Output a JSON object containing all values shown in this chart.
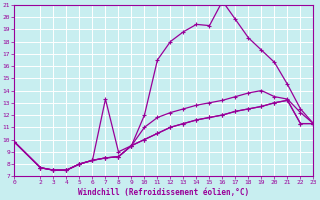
{
  "xlabel": "Windchill (Refroidissement éolien,°C)",
  "bg_color": "#c8eef0",
  "grid_color": "#ffffff",
  "line_color": "#990099",
  "xlim": [
    0,
    23
  ],
  "ylim": [
    7,
    21
  ],
  "xticks": [
    0,
    2,
    3,
    4,
    5,
    6,
    7,
    8,
    9,
    10,
    11,
    12,
    13,
    14,
    15,
    16,
    17,
    18,
    19,
    20,
    21,
    22,
    23
  ],
  "yticks": [
    7,
    8,
    9,
    10,
    11,
    12,
    13,
    14,
    15,
    16,
    17,
    18,
    19,
    20,
    21
  ],
  "lines": [
    {
      "x": [
        0,
        2,
        3,
        4,
        5,
        6,
        7,
        8,
        9,
        10,
        11,
        12,
        13,
        14,
        15,
        16,
        17,
        18,
        19,
        20,
        21,
        22,
        23
      ],
      "y": [
        9.8,
        7.7,
        7.5,
        7.5,
        8.0,
        8.3,
        8.5,
        8.6,
        9.5,
        10.0,
        10.5,
        11.0,
        11.3,
        11.6,
        11.8,
        12.0,
        12.3,
        12.5,
        12.7,
        13.0,
        13.2,
        11.3,
        11.3
      ],
      "style": "-"
    },
    {
      "x": [
        0,
        2,
        3,
        4,
        5,
        6,
        7,
        8,
        9,
        10,
        11,
        12,
        13,
        14,
        15,
        16,
        17,
        18,
        19,
        20,
        21,
        22,
        23
      ],
      "y": [
        9.8,
        7.7,
        7.5,
        7.5,
        8.0,
        8.3,
        8.5,
        8.6,
        9.5,
        11.0,
        11.8,
        12.2,
        12.5,
        12.8,
        13.0,
        13.2,
        13.5,
        13.8,
        14.0,
        13.5,
        13.3,
        12.2,
        11.3
      ],
      "style": "-"
    },
    {
      "x": [
        0,
        2,
        3,
        4,
        5,
        6,
        7,
        8,
        9,
        10,
        11,
        12,
        13,
        14,
        15,
        16,
        17,
        18,
        19,
        20,
        21,
        22,
        23
      ],
      "y": [
        9.8,
        7.7,
        7.5,
        7.5,
        8.0,
        8.3,
        8.5,
        8.6,
        9.5,
        12.0,
        16.5,
        18.0,
        18.8,
        19.4,
        19.3,
        21.3,
        19.8,
        18.3,
        17.3,
        16.3,
        14.5,
        12.5,
        11.3
      ],
      "style": "-"
    },
    {
      "x": [
        0,
        2,
        3,
        4,
        5,
        6,
        7,
        8,
        9,
        10,
        11,
        12,
        13,
        14,
        15,
        16,
        17,
        18,
        19,
        20,
        21,
        22,
        23
      ],
      "y": [
        9.8,
        7.7,
        7.5,
        7.5,
        8.0,
        8.3,
        13.3,
        9.0,
        9.5,
        10.0,
        10.5,
        11.0,
        11.3,
        11.6,
        11.8,
        12.0,
        12.3,
        12.5,
        12.7,
        13.0,
        13.2,
        11.3,
        11.3
      ],
      "style": "-"
    }
  ]
}
